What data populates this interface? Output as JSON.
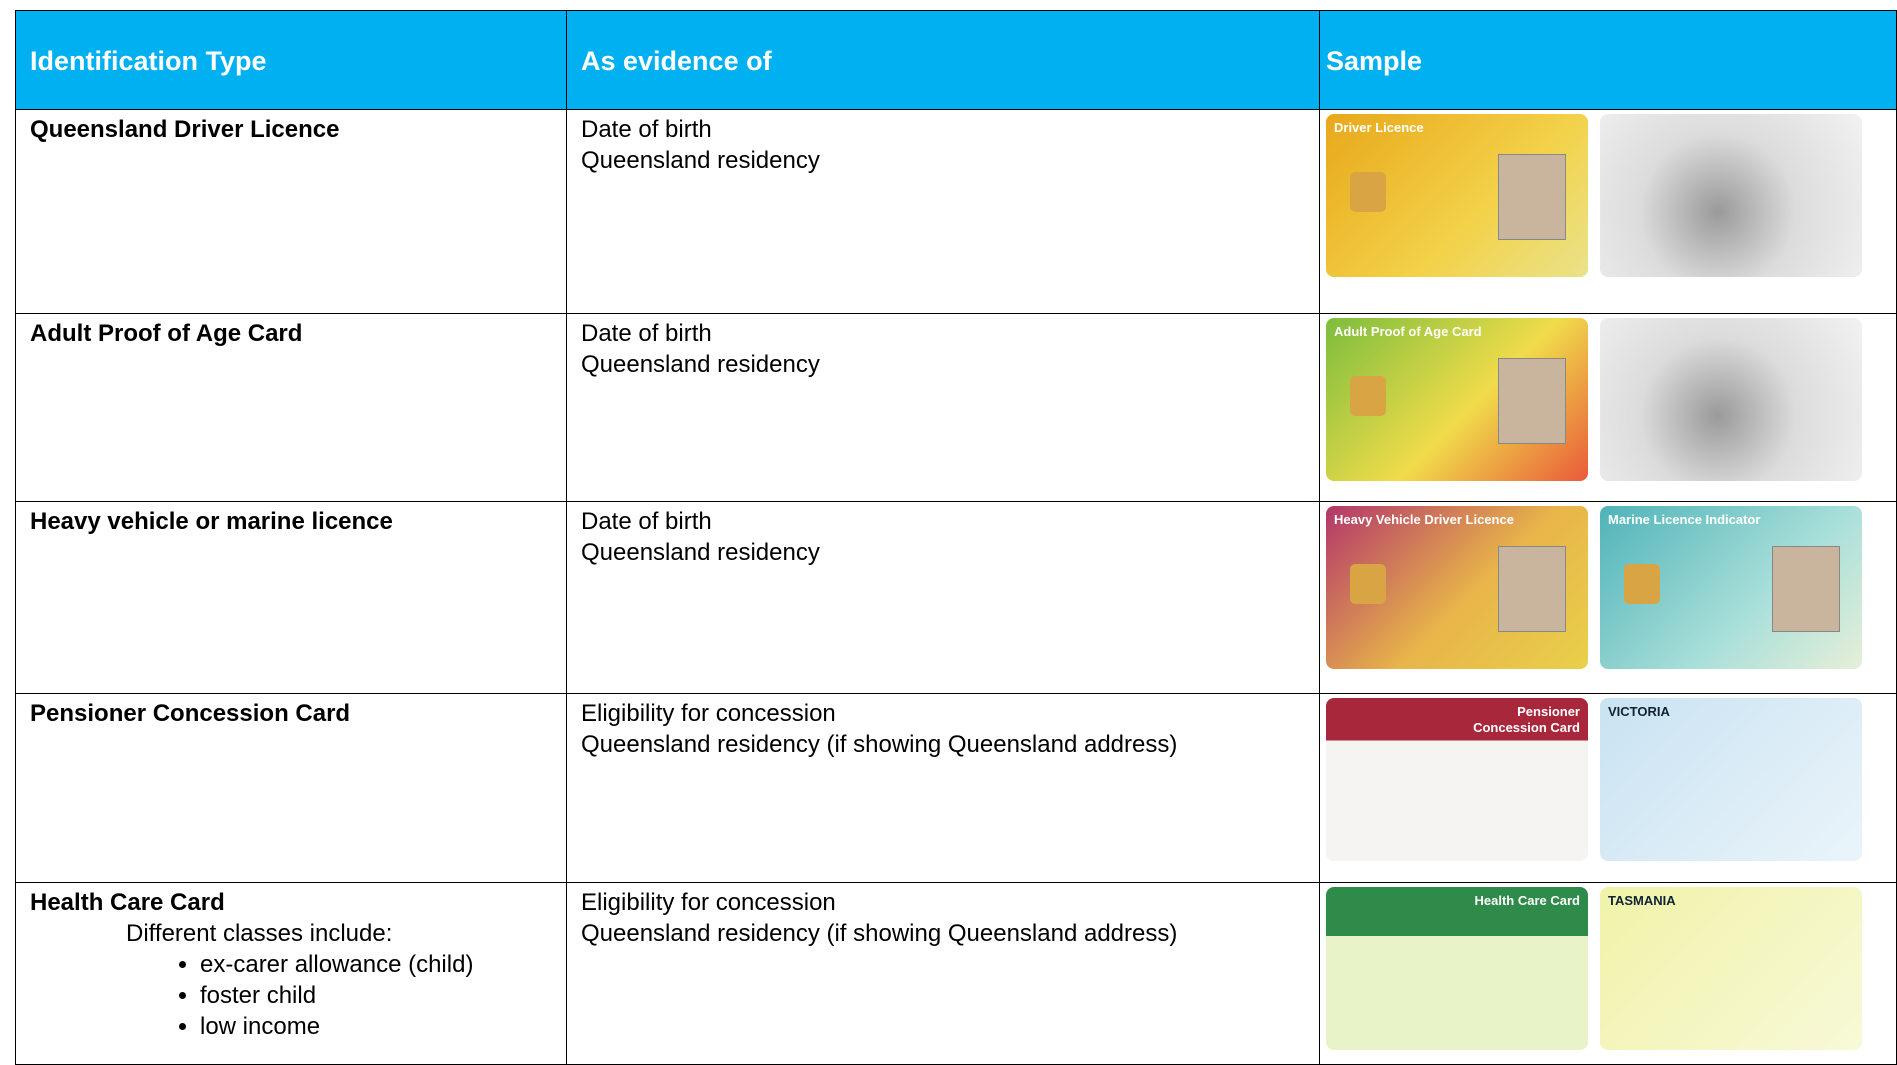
{
  "table": {
    "header": [
      "Identification Type",
      "As evidence of",
      "Sample"
    ],
    "rows": [
      {
        "type": "Queensland Driver Licence",
        "evidence": [
          "Date of birth",
          "Queensland residency"
        ],
        "cards": [
          "Driver Licence"
        ]
      },
      {
        "type": "Adult Proof of Age Card",
        "evidence": [
          "Date of birth",
          "Queensland residency"
        ],
        "cards": [
          "Adult Proof of Age Card"
        ]
      },
      {
        "type": "Heavy vehicle or marine licence",
        "evidence": [
          "Date of birth",
          "Queensland residency"
        ],
        "cards": [
          "Heavy Vehicle Driver Licence",
          "Marine Licence Indicator"
        ]
      },
      {
        "type": "Pensioner Concession Card",
        "evidence": [
          "Eligibility for concession",
          "Queensland residency (if showing Queensland address)"
        ],
        "cards": [
          "Pensioner Concession Card",
          "VICTORIA"
        ]
      },
      {
        "type": "Health Care Card",
        "note": "Different classes include:",
        "bullets": [
          "ex-carer allowance (child)",
          "foster child",
          "low income"
        ],
        "evidence": [
          "Eligibility for concession",
          "Queensland residency (if showing Queensland address)"
        ],
        "cards": [
          "Health Care Card",
          "TASMANIA"
        ]
      }
    ]
  }
}
